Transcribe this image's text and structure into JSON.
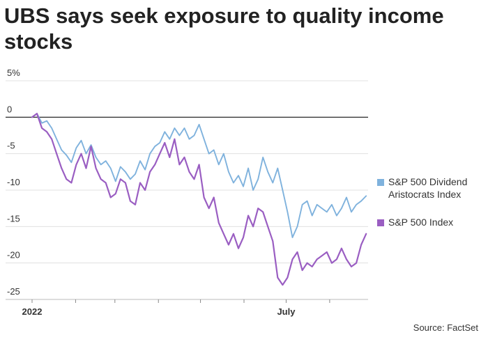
{
  "title": "UBS says seek exposure to quality income stocks",
  "source": "Source: FactSet",
  "colors": {
    "dividend": "#7fb2dd",
    "sp500": "#9a5ec2",
    "zero_line": "#111111",
    "grid": "#e0e0e0"
  },
  "chart_data": {
    "type": "line",
    "title": "UBS says seek exposure to quality income stocks",
    "xlabel": "",
    "ylabel": "",
    "ylim": [
      -25,
      5
    ],
    "grid": true,
    "legend_position": "right",
    "x_ticks": [
      "2022",
      "July"
    ],
    "y_ticks": [
      "5%",
      "0",
      "-5",
      "-10",
      "-15",
      "-20",
      "-25"
    ],
    "x_range_weeks": [
      0,
      34.2
    ],
    "series": [
      {
        "name": "S&P 500 Dividend Aristocrats Index",
        "x": [
          0,
          0.5,
          1,
          1.5,
          2,
          2.5,
          3,
          3.5,
          4,
          4.5,
          5,
          5.5,
          6,
          6.5,
          7,
          7.5,
          8,
          8.5,
          9,
          9.5,
          10,
          10.5,
          11,
          11.5,
          12,
          12.5,
          13,
          13.5,
          14,
          14.5,
          15,
          15.5,
          16,
          16.5,
          17,
          17.5,
          18,
          18.5,
          19,
          19.5,
          20,
          20.5,
          21,
          21.5,
          22,
          22.5,
          23,
          23.5,
          24,
          24.5,
          25,
          25.5,
          26,
          26.5,
          27,
          27.5,
          28,
          28.5,
          29,
          29.5,
          30,
          30.5,
          31,
          31.5,
          32,
          32.5,
          33,
          33.5,
          34
        ],
        "values": [
          0,
          0.5,
          -0.8,
          -0.5,
          -1.5,
          -3.0,
          -4.5,
          -5.2,
          -6.2,
          -4.2,
          -3.2,
          -5.0,
          -3.8,
          -5.5,
          -6.5,
          -6.0,
          -7.0,
          -8.8,
          -6.8,
          -7.5,
          -8.5,
          -7.8,
          -6.0,
          -7.2,
          -5.0,
          -4.0,
          -3.5,
          -2.0,
          -3.0,
          -1.5,
          -2.5,
          -1.5,
          -3.0,
          -2.5,
          -1.0,
          -3.0,
          -5.0,
          -4.5,
          -6.5,
          -5.0,
          -7.5,
          -9.0,
          -8.0,
          -9.5,
          -7.0,
          -10.0,
          -8.5,
          -5.5,
          -7.5,
          -9.0,
          -7.0,
          -10.0,
          -13.0,
          -16.5,
          -15.0,
          -12.0,
          -11.5,
          -13.5,
          -12.0,
          -12.5,
          -13.0,
          -12.0,
          -13.5,
          -12.5,
          -11.0,
          -13.0,
          -12.0,
          -11.5,
          -10.8
        ]
      },
      {
        "name": "S&P 500 Index",
        "x": [
          0,
          0.5,
          1,
          1.5,
          2,
          2.5,
          3,
          3.5,
          4,
          4.5,
          5,
          5.5,
          6,
          6.5,
          7,
          7.5,
          8,
          8.5,
          9,
          9.5,
          10,
          10.5,
          11,
          11.5,
          12,
          12.5,
          13,
          13.5,
          14,
          14.5,
          15,
          15.5,
          16,
          16.5,
          17,
          17.5,
          18,
          18.5,
          19,
          19.5,
          20,
          20.5,
          21,
          21.5,
          22,
          22.5,
          23,
          23.5,
          24,
          24.5,
          25,
          25.5,
          26,
          26.5,
          27,
          27.5,
          28,
          28.5,
          29,
          29.5,
          30,
          30.5,
          31,
          31.5,
          32,
          32.5,
          33,
          33.5,
          34
        ],
        "values": [
          0,
          0.5,
          -1.5,
          -2.0,
          -3.0,
          -5.0,
          -7.0,
          -8.5,
          -9.0,
          -6.5,
          -5.0,
          -7.0,
          -4.0,
          -7.0,
          -8.5,
          -9.0,
          -11.0,
          -10.5,
          -8.5,
          -9.0,
          -11.5,
          -12.0,
          -9.0,
          -10.0,
          -7.5,
          -6.5,
          -5.0,
          -3.5,
          -5.5,
          -3.0,
          -6.5,
          -5.5,
          -7.5,
          -8.5,
          -6.5,
          -11.0,
          -12.5,
          -11.0,
          -14.5,
          -16.0,
          -17.5,
          -16.0,
          -18.0,
          -16.5,
          -13.5,
          -15.0,
          -12.5,
          -13.0,
          -15.0,
          -17.0,
          -22.0,
          -23.0,
          -22.0,
          -19.5,
          -18.5,
          -21.0,
          -20.0,
          -20.5,
          -19.5,
          -19.0,
          -18.5,
          -20.0,
          -19.5,
          -18.0,
          -19.5,
          -20.5,
          -20.0,
          -17.5,
          -16.0
        ]
      }
    ]
  }
}
